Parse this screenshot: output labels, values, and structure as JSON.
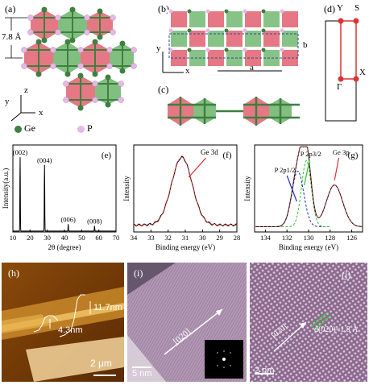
{
  "panels": {
    "a": {
      "label": "(a)",
      "spacing": "7.8 Å",
      "axis_z": "z",
      "axis_y": "y",
      "axis_x": "x",
      "legend": [
        {
          "symbol": "Ge",
          "color": "#3a7a3a"
        },
        {
          "symbol": "P",
          "color": "#e5b8e5"
        }
      ]
    },
    "b": {
      "label": "(b)",
      "axis_y": "y",
      "axis_x": "x",
      "dim_a": "a",
      "dim_b": "b"
    },
    "c": {
      "label": "(c)"
    },
    "d": {
      "label": "(d)",
      "points": [
        "Y",
        "S",
        "Γ",
        "X"
      ]
    },
    "h": {
      "label": "(h)",
      "height1": "11.7nm",
      "height2": "4.3nm",
      "scale": "2 μm"
    },
    "i": {
      "label": "(i)",
      "direction": "[020]",
      "scale": "5 nm"
    },
    "j": {
      "label": "(j)",
      "direction": "[020]",
      "spacing": "d(020)=1.8 Å",
      "scale": "2 nm"
    }
  },
  "colors": {
    "ge": "#3f7f3f",
    "p": "#d9a6d9",
    "red": "#e0606e",
    "green_fill": "#72b872"
  },
  "chart_data": [
    {
      "type": "line",
      "panel_label": "(e)",
      "xlabel": "2θ (degree)",
      "ylabel": "Intensity(a.u.)",
      "xlim": [
        10,
        70
      ],
      "xticks": [
        10,
        20,
        30,
        40,
        50,
        60,
        70
      ],
      "peaks": [
        {
          "x": 14.2,
          "height": 0.85,
          "label": "(002)"
        },
        {
          "x": 28.4,
          "height": 0.76,
          "label": "(004)"
        },
        {
          "x": 42.2,
          "height": 0.08,
          "label": "(006)"
        },
        {
          "x": 57.5,
          "height": 0.06,
          "label": "(008)"
        }
      ]
    },
    {
      "type": "line",
      "panel_label": "(f)",
      "xlabel": "Binding energy (eV)",
      "ylabel": "Intensity",
      "xlim": [
        34,
        28
      ],
      "xticks": [
        34,
        33,
        32,
        31,
        30,
        29,
        28
      ],
      "series": [
        {
          "name": "Ge 3d",
          "center": 31.2,
          "sigma": 0.6,
          "amplitude": 1.0
        }
      ],
      "annotation": "Ge 3d"
    },
    {
      "type": "line",
      "panel_label": "(g)",
      "xlabel": "Binding energy (eV)",
      "ylabel": "Intensity",
      "xlim": [
        135,
        125
      ],
      "xticks": [
        134,
        132,
        130,
        128,
        126
      ],
      "series": [
        {
          "name": "P 2p1/2",
          "center": 131.0,
          "sigma": 0.55,
          "amplitude": 0.8
        },
        {
          "name": "P 2p3/2",
          "center": 130.2,
          "sigma": 0.45,
          "amplitude": 0.95
        },
        {
          "name": "Ge 3p",
          "center": 127.6,
          "sigma": 0.75,
          "amplitude": 0.6
        }
      ],
      "annotations": [
        "P 2p1/2",
        "P 2p3/2",
        "Ge 3p"
      ]
    }
  ]
}
